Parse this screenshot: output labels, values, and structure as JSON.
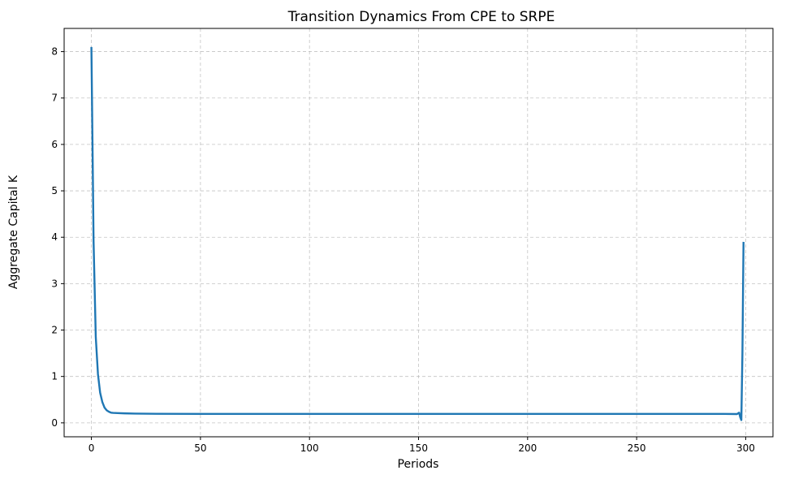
{
  "chart_data": {
    "type": "line",
    "title": "Transition Dynamics From CPE to SRPE",
    "xlabel": "Periods",
    "ylabel": "Aggregate Capital K",
    "xlim": [
      -12.5,
      312.5
    ],
    "ylim": [
      -0.3,
      8.5
    ],
    "xticks": [
      0,
      50,
      100,
      150,
      200,
      250,
      300
    ],
    "yticks": [
      0,
      1,
      2,
      3,
      4,
      5,
      6,
      7,
      8
    ],
    "grid": true,
    "line_color": "#1f77b4",
    "series": [
      {
        "x": [
          0,
          1,
          2,
          3,
          4,
          5,
          6,
          7,
          8,
          9,
          10,
          12,
          15,
          20,
          30,
          50,
          100,
          150,
          200,
          250,
          290,
          296,
          297,
          297.5,
          298,
          298.5,
          299
        ],
        "y": [
          8.1,
          3.9,
          1.85,
          1.05,
          0.65,
          0.45,
          0.33,
          0.27,
          0.24,
          0.22,
          0.215,
          0.21,
          0.205,
          0.2,
          0.195,
          0.193,
          0.193,
          0.193,
          0.193,
          0.193,
          0.193,
          0.19,
          0.22,
          0.12,
          0.06,
          1.5,
          3.9
        ]
      }
    ]
  }
}
